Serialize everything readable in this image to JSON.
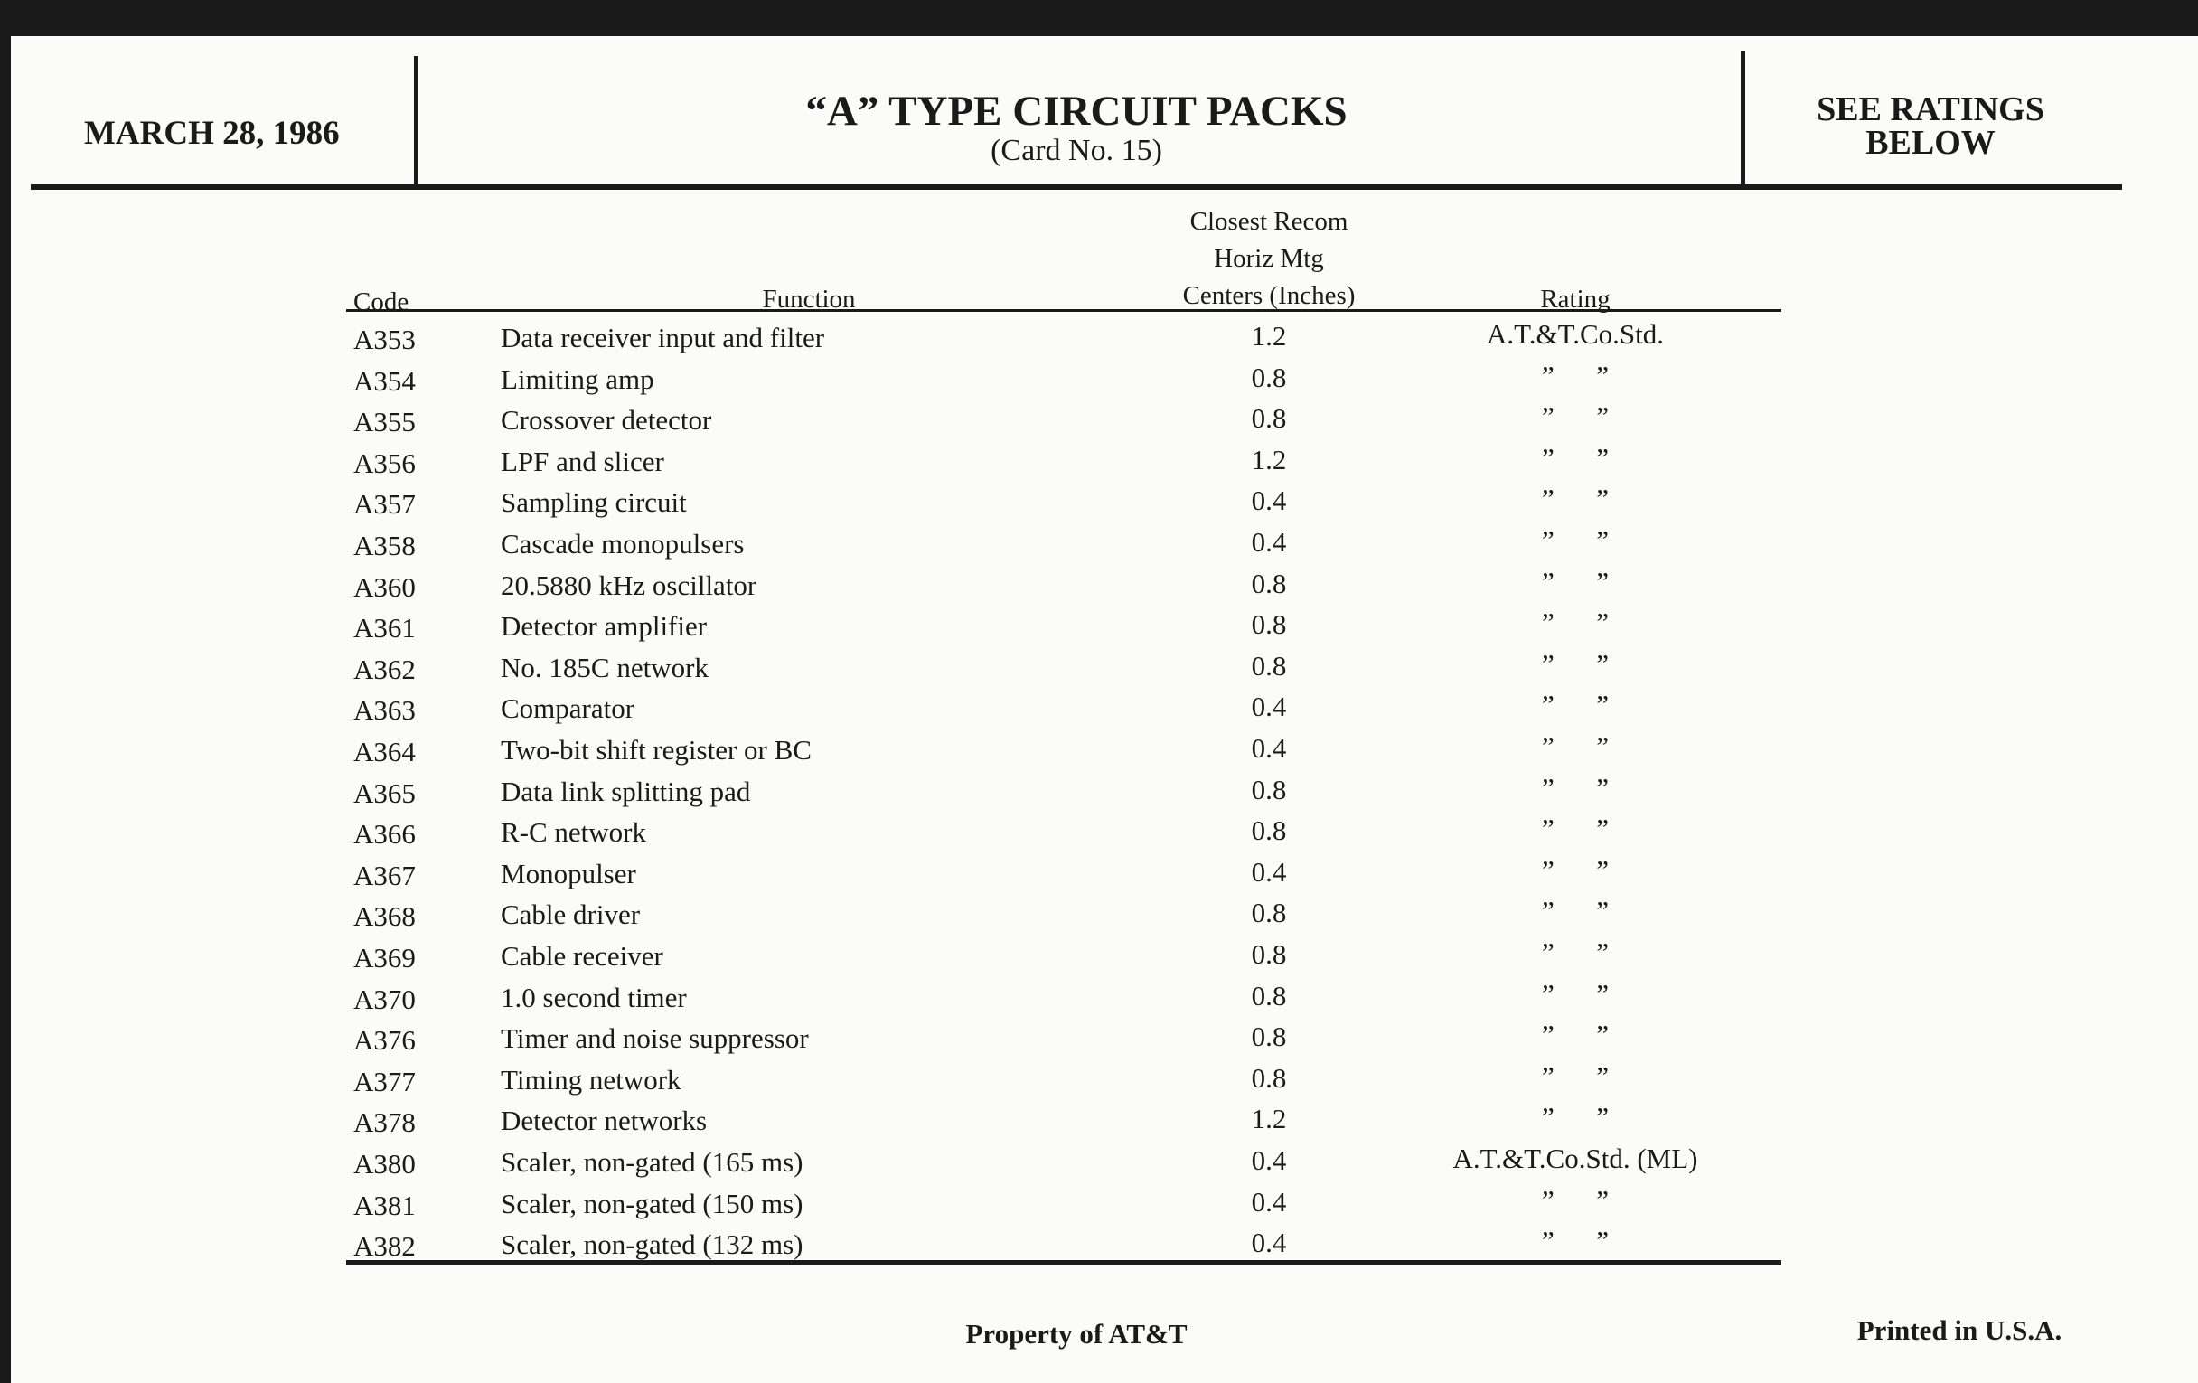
{
  "header": {
    "date": "MARCH 28, 1986",
    "title": "“A” TYPE CIRCUIT PACKS",
    "subtitle": "(Card No. 15)",
    "ratings_note": [
      "SEE RATINGS",
      "BELOW"
    ]
  },
  "table": {
    "columns": {
      "code": "Code",
      "function": "Function",
      "spacing": [
        "Closest Recom",
        "Horiz Mtg",
        "Centers (Inches)"
      ],
      "rating": "Rating"
    },
    "rows": [
      [
        "A353",
        "Data receiver input and filter",
        "1.2",
        "A.T.&T.Co.Std."
      ],
      [
        "A354",
        "Limiting amp",
        "0.8",
        "”      ”"
      ],
      [
        "A355",
        "Crossover detector",
        "0.8",
        "”      ”"
      ],
      [
        "A356",
        "LPF and slicer",
        "1.2",
        "”      ”"
      ],
      [
        "A357",
        "Sampling circuit",
        "0.4",
        "”      ”"
      ],
      [
        "A358",
        "Cascade monopulsers",
        "0.4",
        "”      ”"
      ],
      [
        "A360",
        "20.5880 kHz oscillator",
        "0.8",
        "”      ”"
      ],
      [
        "A361",
        "Detector amplifier",
        "0.8",
        "”      ”"
      ],
      [
        "A362",
        "No. 185C network",
        "0.8",
        "”      ”"
      ],
      [
        "A363",
        "Comparator",
        "0.4",
        "”      ”"
      ],
      [
        "A364",
        "Two-bit shift register or BC",
        "0.4",
        "”      ”"
      ],
      [
        "A365",
        "Data link splitting pad",
        "0.8",
        "”      ”"
      ],
      [
        "A366",
        "R-C network",
        "0.8",
        "”      ”"
      ],
      [
        "A367",
        "Monopulser",
        "0.4",
        "”      ”"
      ],
      [
        "A368",
        "Cable driver",
        "0.8",
        "”      ”"
      ],
      [
        "A369",
        "Cable receiver",
        "0.8",
        "”      ”"
      ],
      [
        "A370",
        "1.0 second timer",
        "0.8",
        "”      ”"
      ],
      [
        "A376",
        "Timer and noise suppressor",
        "0.8",
        "”      ”"
      ],
      [
        "A377",
        "Timing network",
        "0.8",
        "”      ”"
      ],
      [
        "A378",
        "Detector networks",
        "1.2",
        "”      ”"
      ],
      [
        "A380",
        "Scaler, non-gated (165 ms)",
        "0.4",
        "A.T.&T.Co.Std. (ML)"
      ],
      [
        "A381",
        "Scaler, non-gated (150 ms)",
        "0.4",
        "”      ”"
      ],
      [
        "A382",
        "Scaler, non-gated (132 ms)",
        "0.4",
        "”      ”"
      ]
    ]
  },
  "footer": {
    "owner": "Property of AT&T",
    "printed": "Printed in U.S.A."
  }
}
